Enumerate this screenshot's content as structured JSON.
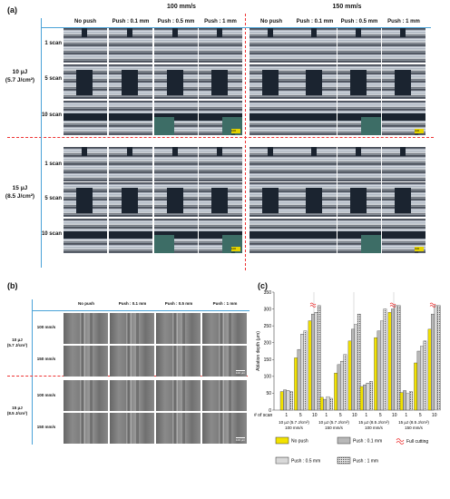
{
  "panel_a": {
    "label": "(a)",
    "speeds": [
      "100 mm/s",
      "150 mm/s"
    ],
    "columns": [
      "No push",
      "Push : 0.1 mm",
      "Push : 0.5 mm",
      "Push : 1 mm"
    ],
    "groups": [
      {
        "energy": "10 μJ",
        "fluence": "(5.7 J/cm²)"
      },
      {
        "energy": "15 μJ",
        "fluence": "(8.5 J/cm²)"
      }
    ],
    "rows": [
      "1 scan",
      "5 scan",
      "10 scan"
    ],
    "scale_bar": "100 μm"
  },
  "panel_b": {
    "label": "(b)",
    "columns": [
      "No push",
      "Push : 0.1 mm",
      "Push : 0.5 mm",
      "Push : 1 mm"
    ],
    "groups": [
      {
        "energy": "10 μJ",
        "fluence": "(5.7 J/cm²)"
      },
      {
        "energy": "15 μJ",
        "fluence": "(8.5 J/cm²)"
      }
    ],
    "speeds": [
      "100 mm/s",
      "150 mm/s"
    ],
    "scale_bar": "100 μm"
  },
  "panel_c": {
    "label": "(c)"
  },
  "chart_data": {
    "type": "bar",
    "ylabel": "Ablation depth (μm)",
    "ylim": [
      0,
      350
    ],
    "yticks": [
      0,
      50,
      100,
      150,
      200,
      250,
      300,
      350
    ],
    "scan_axis_label": "# of scan",
    "scans": [
      "1",
      "5",
      "10"
    ],
    "groups": [
      {
        "label": "10 μJ (5.7 J/cm²) 100 mm/s",
        "line1": "10 μJ (5.7 J/cm²)",
        "line2": "100 mm/s"
      },
      {
        "label": "10 μJ (5.7 J/cm²) 150 mm/s",
        "line1": "10 μJ (5.7 J/cm²)",
        "line2": "150 mm/s"
      },
      {
        "label": "15 μJ (8.5 J/cm²) 100 mm/s",
        "line1": "15 μJ (8.5 J/cm²)",
        "line2": "100 mm/s"
      },
      {
        "label": "15 μJ (8.5 J/cm²) 150 mm/s",
        "line1": "15 μJ (8.5 J/cm²)",
        "line2": "150 mm/s"
      }
    ],
    "series": [
      {
        "name": "No push",
        "color": "#f2e200",
        "values": [
          [
            55,
            155,
            265
          ],
          [
            38,
            110,
            205
          ],
          [
            70,
            215,
            290
          ],
          [
            52,
            140,
            240
          ]
        ]
      },
      {
        "name": "Push : 0.1 mm",
        "color": "#b8b8b8",
        "values": [
          [
            60,
            180,
            285
          ],
          [
            32,
            135,
            240
          ],
          [
            75,
            235,
            300
          ],
          [
            58,
            175,
            285
          ]
        ]
      },
      {
        "name": "Push : 0.5 mm",
        "color": "#ffffff",
        "values": [
          [
            58,
            225,
            290
          ],
          [
            40,
            145,
            255
          ],
          [
            80,
            265,
            310
          ],
          [
            50,
            190,
            310
          ]
        ]
      },
      {
        "name": "Push : 1 mm",
        "color": "#dddddd",
        "values": [
          [
            55,
            235,
            310
          ],
          [
            35,
            165,
            285
          ],
          [
            85,
            300,
            310
          ],
          [
            55,
            205,
            310
          ]
        ]
      }
    ],
    "full_cutting": [
      [
        false,
        false,
        true
      ],
      [
        false,
        false,
        false
      ],
      [
        false,
        false,
        true
      ],
      [
        false,
        false,
        true
      ]
    ],
    "full_cutting_label": "Full cutting"
  }
}
